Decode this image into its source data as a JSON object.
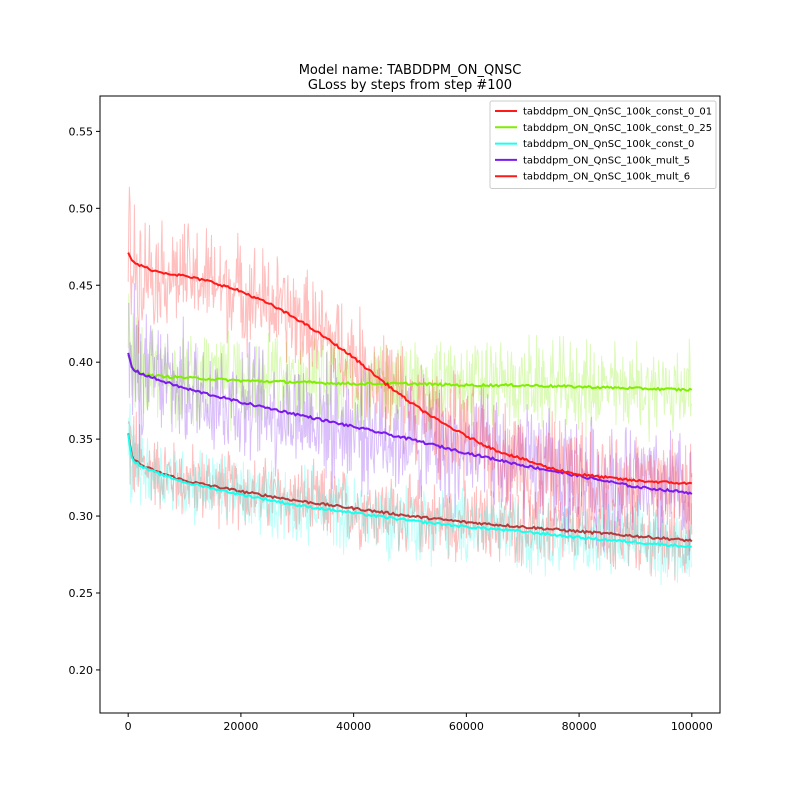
{
  "chart_data": {
    "type": "line",
    "title": "Model name: TABDDPM_ON_QNSC",
    "subtitle": "GLoss by steps from step #100",
    "xlabel": "",
    "ylabel": "",
    "xlim": [
      -5000,
      105000
    ],
    "ylim": [
      0.172,
      0.573
    ],
    "x_ticks": [
      0,
      20000,
      40000,
      60000,
      80000,
      100000
    ],
    "x_tick_labels": [
      "0",
      "20000",
      "40000",
      "60000",
      "80000",
      "100000"
    ],
    "y_ticks": [
      0.2,
      0.25,
      0.3,
      0.35,
      0.4,
      0.45,
      0.5,
      0.55
    ],
    "y_tick_labels": [
      "0.20",
      "0.25",
      "0.30",
      "0.35",
      "0.40",
      "0.45",
      "0.50",
      "0.55"
    ],
    "grid": false,
    "legend_position": "top-right",
    "series": [
      {
        "name": "tabddpm_ON_QnSC_100k_const_0_01",
        "color": "#ff1a1a",
        "smooth_line_color": "#b43c3c",
        "x": [
          0,
          500,
          1000,
          2000,
          3000,
          5000,
          10000,
          20000,
          30000,
          40000,
          50000,
          60000,
          70000,
          80000,
          90000,
          100000
        ],
        "y": [
          0.353,
          0.342,
          0.337,
          0.334,
          0.332,
          0.329,
          0.323,
          0.316,
          0.31,
          0.305,
          0.3,
          0.296,
          0.293,
          0.29,
          0.287,
          0.284
        ],
        "noise": 0.025
      },
      {
        "name": "tabddpm_ON_QnSC_100k_const_0_25",
        "color": "#80ee00",
        "x": [
          0,
          500,
          1000,
          2000,
          3000,
          5000,
          10000,
          20000,
          30000,
          40000,
          50000,
          60000,
          70000,
          80000,
          90000,
          100000
        ],
        "y": [
          0.405,
          0.398,
          0.395,
          0.393,
          0.392,
          0.391,
          0.39,
          0.388,
          0.387,
          0.386,
          0.386,
          0.385,
          0.385,
          0.384,
          0.383,
          0.382
        ],
        "noise": 0.03
      },
      {
        "name": "tabddpm_ON_QnSC_100k_const_0",
        "color": "#1affee",
        "x": [
          0,
          500,
          1000,
          2000,
          3000,
          5000,
          10000,
          20000,
          30000,
          40000,
          50000,
          60000,
          70000,
          80000,
          90000,
          100000
        ],
        "y": [
          0.353,
          0.34,
          0.336,
          0.333,
          0.331,
          0.328,
          0.322,
          0.314,
          0.307,
          0.302,
          0.297,
          0.293,
          0.29,
          0.286,
          0.283,
          0.28
        ],
        "noise": 0.025
      },
      {
        "name": "tabddpm_ON_QnSC_100k_mult_5",
        "color": "#7a1aee",
        "x": [
          0,
          500,
          1000,
          2000,
          5000,
          10000,
          20000,
          30000,
          40000,
          50000,
          60000,
          70000,
          80000,
          90000,
          100000
        ],
        "y": [
          0.406,
          0.398,
          0.395,
          0.393,
          0.389,
          0.383,
          0.374,
          0.366,
          0.358,
          0.35,
          0.341,
          0.333,
          0.326,
          0.319,
          0.315
        ],
        "noise": 0.04
      },
      {
        "name": "tabddpm_ON_QnSC_100k_mult_6",
        "color": "#ff1a1a",
        "x": [
          0,
          500,
          1000,
          2000,
          5000,
          10000,
          15000,
          20000,
          25000,
          30000,
          35000,
          40000,
          45000,
          50000,
          55000,
          60000,
          65000,
          70000,
          75000,
          80000,
          85000,
          90000,
          95000,
          100000
        ],
        "y": [
          0.471,
          0.467,
          0.465,
          0.463,
          0.459,
          0.456,
          0.452,
          0.446,
          0.438,
          0.428,
          0.416,
          0.403,
          0.388,
          0.374,
          0.362,
          0.352,
          0.343,
          0.337,
          0.331,
          0.327,
          0.325,
          0.323,
          0.322,
          0.321
        ],
        "noise": 0.035
      }
    ]
  }
}
